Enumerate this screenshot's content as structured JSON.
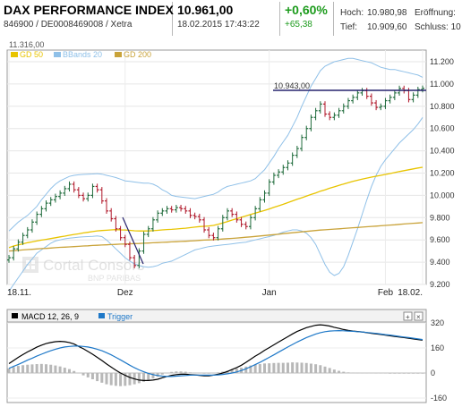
{
  "header": {
    "title": "DAX PERFORMANCE INDEX",
    "subtitle": "846900 / DE0008469008 / Xetra",
    "price": "10.961,00",
    "datetime": "18.02.2015 17:43:22",
    "change_pct": "+0,60%",
    "change_abs": "+65,38",
    "high_label": "Hoch:",
    "high_value": "10.980,98",
    "open_label": "Eröffnung:",
    "low_label": "Tief:",
    "low_value": "10.909,60",
    "close_label": "Schluss: 10"
  },
  "main_top_label": "11.316,00",
  "legend": {
    "gd50": "GD 50",
    "bbands": "BBands 20",
    "gd200": "GD 200"
  },
  "watermark": {
    "line1": "Cortal Consors",
    "line2": "BNP PARIBAS"
  },
  "annotation": "10.943,00",
  "macd_legend": {
    "macd": "MACD 12, 26, 9",
    "trigger": "Trigger"
  },
  "colors": {
    "up": "#1f6b3b",
    "down": "#b0182a",
    "gd50": "#e8c400",
    "gd200": "#c9a33a",
    "bbands": "#8fc0e8",
    "macd": "#000000",
    "trigger": "#1e78c8",
    "hist": "#b8b8b8",
    "hline": "#27236e"
  },
  "chart_data": [
    {
      "type": "candlestick",
      "title": "DAX PERFORMANCE INDEX",
      "x_ticks": [
        "18.11.",
        "Dez",
        "Jan",
        "Feb",
        "18.02."
      ],
      "y_ticks": [
        9200,
        9400,
        9600,
        9800,
        10000,
        10200,
        10400,
        10600,
        10800,
        11000,
        11200
      ],
      "y_tick_labels": [
        "9.200",
        "9.400",
        "9.600",
        "9.800",
        "10.000",
        "10.200",
        "10.400",
        "10.600",
        "10.800",
        "11.000",
        "11.200"
      ],
      "ylim": [
        9200,
        11316
      ],
      "grid": true,
      "legend_position": "top-left",
      "close": [
        9440,
        9520,
        9580,
        9640,
        9690,
        9760,
        9830,
        9880,
        9930,
        9960,
        9990,
        10020,
        10060,
        10100,
        10050,
        10000,
        9970,
        10000,
        10080,
        10050,
        9950,
        9860,
        9790,
        9700,
        9620,
        9560,
        9440,
        9370,
        9500,
        9650,
        9700,
        9780,
        9840,
        9860,
        9880,
        9870,
        9890,
        9880,
        9860,
        9820,
        9810,
        9780,
        9690,
        9640,
        9620,
        9700,
        9800,
        9860,
        9830,
        9780,
        9740,
        9720,
        9800,
        9880,
        9960,
        10020,
        10120,
        10180,
        10210,
        10250,
        10290,
        10360,
        10420,
        10520,
        10600,
        10700,
        10760,
        10820,
        10730,
        10700,
        10720,
        10760,
        10800,
        10850,
        10880,
        10920,
        10940,
        10890,
        10830,
        10790,
        10800,
        10850,
        10880,
        10920,
        10960,
        10940,
        10860,
        10900,
        10950,
        10961
      ],
      "gd50": [
        9530,
        9545,
        9555,
        9565,
        9575,
        9582,
        9590,
        9598,
        9605,
        9612,
        9619,
        9627,
        9634,
        9642,
        9649,
        9655,
        9663,
        9668,
        9675,
        9681,
        9684,
        9687,
        9690,
        9692,
        9690,
        9689,
        9686,
        9682,
        9680,
        9680,
        9680,
        9683,
        9686,
        9690,
        9693,
        9695,
        9698,
        9702,
        9705,
        9710,
        9715,
        9720,
        9722,
        9725,
        9730,
        9740,
        9752,
        9765,
        9778,
        9790,
        9803,
        9815,
        9828,
        9840,
        9852,
        9865,
        9878,
        9892,
        9906,
        9920,
        9935,
        9950,
        9965,
        9978,
        9993,
        10008,
        10022,
        10038,
        10050,
        10064,
        10076,
        10090,
        10102,
        10114,
        10126,
        10136,
        10146,
        10155,
        10164,
        10172,
        10180,
        10188,
        10196,
        10205,
        10214,
        10222,
        10230,
        10238,
        10246,
        10252
      ],
      "gd200": [
        9500,
        9503,
        9506,
        9510,
        9513,
        9516,
        9519,
        9522,
        9524,
        9527,
        9530,
        9533,
        9535,
        9537,
        9540,
        9542,
        9545,
        9547,
        9550,
        9552,
        9554,
        9556,
        9558,
        9560,
        9562,
        9563,
        9565,
        9567,
        9568,
        9570,
        9572,
        9574,
        9576,
        9578,
        9580,
        9582,
        9584,
        9586,
        9588,
        9590,
        9593,
        9596,
        9598,
        9600,
        9602,
        9605,
        9608,
        9611,
        9614,
        9617,
        9620,
        9624,
        9627,
        9631,
        9635,
        9639,
        9643,
        9647,
        9651,
        9656,
        9660,
        9664,
        9668,
        9672,
        9676,
        9680,
        9684,
        9688,
        9691,
        9694,
        9697,
        9700,
        9703,
        9706,
        9709,
        9712,
        9715,
        9718,
        9721,
        9724,
        9727,
        9730,
        9733,
        9736,
        9740,
        9743,
        9746,
        9749,
        9752,
        9755
      ],
      "bb_upper": [
        9680,
        9720,
        9760,
        9790,
        9820,
        9860,
        9900,
        9960,
        10010,
        10060,
        10100,
        10130,
        10150,
        10170,
        10180,
        10185,
        10188,
        10190,
        10192,
        10195,
        10190,
        10180,
        10170,
        10160,
        10145,
        10130,
        10125,
        10120,
        10115,
        10110,
        10110,
        10100,
        10080,
        10050,
        10030,
        10000,
        9990,
        9985,
        9980,
        9975,
        9970,
        9980,
        9990,
        10000,
        10010,
        10030,
        10060,
        10080,
        10090,
        10100,
        10110,
        10120,
        10130,
        10150,
        10190,
        10230,
        10290,
        10350,
        10420,
        10480,
        10540,
        10620,
        10700,
        10800,
        10890,
        10980,
        11050,
        11120,
        11160,
        11180,
        11200,
        11210,
        11220,
        11230,
        11230,
        11220,
        11210,
        11200,
        11190,
        11170,
        11150,
        11140,
        11130,
        11130,
        11120,
        11110,
        11100,
        11090,
        11080,
        11060
      ],
      "bb_lower": [
        9140,
        9200,
        9260,
        9320,
        9380,
        9430,
        9480,
        9510,
        9540,
        9570,
        9590,
        9600,
        9610,
        9615,
        9620,
        9625,
        9628,
        9630,
        9632,
        9636,
        9630,
        9600,
        9560,
        9520,
        9480,
        9440,
        9410,
        9385,
        9370,
        9360,
        9355,
        9360,
        9370,
        9390,
        9400,
        9410,
        9430,
        9450,
        9470,
        9490,
        9510,
        9520,
        9530,
        9540,
        9545,
        9550,
        9555,
        9560,
        9565,
        9570,
        9575,
        9580,
        9590,
        9600,
        9610,
        9620,
        9630,
        9640,
        9655,
        9670,
        9680,
        9690,
        9690,
        9680,
        9660,
        9620,
        9560,
        9470,
        9380,
        9310,
        9280,
        9300,
        9360,
        9460,
        9580,
        9700,
        9830,
        9960,
        10080,
        10180,
        10260,
        10320,
        10370,
        10420,
        10470,
        10510,
        10550,
        10590,
        10640,
        10700
      ]
    },
    {
      "type": "line",
      "title": "MACD 12, 26, 9",
      "y_ticks": [
        -160,
        0,
        160,
        320
      ],
      "y_tick_labels": [
        "-160",
        "0",
        "160",
        "320"
      ],
      "ylim": [
        -190,
        350
      ],
      "series": [
        {
          "name": "MACD 12, 26, 9",
          "values": [
            60,
            80,
            100,
            118,
            135,
            150,
            165,
            178,
            188,
            195,
            200,
            202,
            200,
            195,
            185,
            170,
            155,
            138,
            120,
            100,
            80,
            58,
            38,
            18,
            0,
            -15,
            -28,
            -38,
            -45,
            -48,
            -48,
            -45,
            -40,
            -30,
            -22,
            -15,
            -10,
            -8,
            -8,
            -10,
            -12,
            -15,
            -18,
            -18,
            -14,
            -8,
            0,
            10,
            22,
            35,
            50,
            68,
            88,
            108,
            125,
            145,
            162,
            180,
            198,
            215,
            232,
            250,
            265,
            278,
            290,
            298,
            305,
            308,
            305,
            300,
            292,
            285,
            278,
            272,
            268,
            265,
            262,
            258,
            254,
            250,
            246,
            242,
            238,
            234,
            230,
            226,
            222,
            218,
            214,
            210
          ]
        },
        {
          "name": "Trigger",
          "values": [
            30,
            42,
            55,
            68,
            82,
            95,
            108,
            120,
            132,
            142,
            152,
            160,
            166,
            170,
            172,
            172,
            170,
            166,
            160,
            152,
            142,
            130,
            116,
            100,
            84,
            67,
            50,
            34,
            20,
            8,
            -2,
            -10,
            -16,
            -20,
            -22,
            -22,
            -20,
            -18,
            -16,
            -14,
            -13,
            -13,
            -14,
            -14,
            -14,
            -12,
            -9,
            -5,
            0,
            7,
            16,
            27,
            40,
            54,
            68,
            84,
            100,
            116,
            133,
            150,
            166,
            182,
            198,
            212,
            226,
            238,
            249,
            258,
            264,
            268,
            270,
            271,
            270,
            268,
            266,
            264,
            262,
            259,
            256,
            253,
            249,
            245,
            242,
            238,
            234,
            230,
            226,
            222,
            218,
            214
          ]
        }
      ],
      "histogram": [
        30,
        38,
        45,
        50,
        53,
        55,
        57,
        58,
        56,
        53,
        48,
        42,
        34,
        25,
        13,
        -2,
        -15,
        -28,
        -40,
        -52,
        -62,
        -72,
        -78,
        -82,
        -84,
        -82,
        -78,
        -72,
        -65,
        -56,
        -46,
        -35,
        -24,
        -10,
        0,
        7,
        10,
        10,
        8,
        4,
        1,
        -2,
        -4,
        -4,
        0,
        4,
        9,
        15,
        22,
        28,
        34,
        41,
        48,
        54,
        57,
        61,
        62,
        64,
        65,
        65,
        66,
        68,
        67,
        66,
        64,
        60,
        56,
        50,
        41,
        32,
        22,
        14,
        8,
        4,
        2,
        1,
        0,
        -1,
        -2,
        -3,
        -3,
        -3,
        -4,
        -4,
        -4,
        -4,
        -4,
        -4,
        -4,
        -4
      ]
    }
  ]
}
